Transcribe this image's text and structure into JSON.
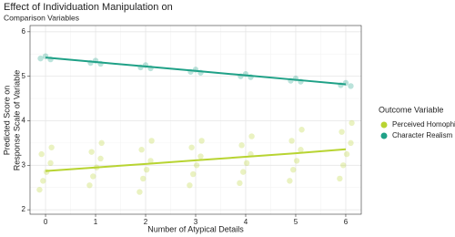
{
  "chart_data": {
    "type": "scatter",
    "title": "Effect of Individuation Manipulation on",
    "subtitle": "Comparison Variables",
    "x_label": "Number of Atypical Details",
    "y_label": [
      "Predicted Score on",
      "Response Scale of Variable"
    ],
    "legend_title": "Outcome Variable",
    "legend": "right",
    "grid": true,
    "x": [
      0,
      1,
      2,
      3,
      4,
      5,
      6
    ],
    "xlim": [
      -0.31,
      6.31
    ],
    "xticks": [
      0,
      1,
      2,
      3,
      4,
      5,
      6
    ],
    "ylim": [
      1.9,
      6.14
    ],
    "yticks": [
      2,
      3,
      4,
      5,
      6
    ],
    "series": [
      {
        "name": "Perceived Homophily",
        "color": "#b8d432",
        "values": [
          2.87,
          2.95,
          3.03,
          3.11,
          3.19,
          3.27,
          3.36
        ],
        "jitter_x": [
          -0.12,
          -0.05,
          0.02,
          0.1,
          -0.08,
          0.12,
          0.88,
          0.95,
          1.02,
          1.1,
          0.92,
          1.12,
          1.88,
          1.95,
          2.02,
          2.1,
          1.92,
          2.12,
          2.88,
          2.95,
          3.02,
          3.1,
          2.92,
          3.12,
          3.88,
          3.95,
          4.02,
          4.1,
          3.92,
          4.12,
          4.88,
          4.95,
          5.02,
          5.1,
          4.92,
          5.12,
          5.88,
          5.95,
          6.02,
          6.1,
          5.92,
          6.12
        ],
        "jitter_y": [
          2.45,
          2.65,
          2.85,
          3.05,
          3.25,
          3.4,
          2.55,
          2.75,
          2.95,
          3.15,
          3.3,
          3.5,
          2.4,
          2.7,
          2.9,
          3.1,
          3.35,
          3.55,
          2.55,
          2.8,
          3.0,
          3.2,
          3.4,
          3.55,
          2.6,
          2.85,
          3.05,
          3.25,
          3.45,
          3.65,
          2.65,
          2.9,
          3.1,
          3.35,
          3.55,
          3.8,
          2.7,
          3.0,
          3.25,
          3.5,
          3.75,
          3.95
        ]
      },
      {
        "name": "Character Realism",
        "color": "#1fa187",
        "values": [
          5.42,
          5.32,
          5.22,
          5.12,
          5.02,
          4.92,
          4.82
        ],
        "jitter_x": [
          -0.1,
          0,
          0.1,
          0.9,
          1,
          1.1,
          1.9,
          2,
          2.1,
          2.9,
          3,
          3.1,
          3.9,
          4,
          4.1,
          4.9,
          5,
          5.1,
          5.9,
          6,
          6.1
        ],
        "jitter_y": [
          5.4,
          5.45,
          5.38,
          5.3,
          5.35,
          5.28,
          5.2,
          5.25,
          5.18,
          5.1,
          5.15,
          5.08,
          5.0,
          5.05,
          4.98,
          4.9,
          4.95,
          4.88,
          4.8,
          4.85,
          4.78
        ]
      }
    ]
  }
}
